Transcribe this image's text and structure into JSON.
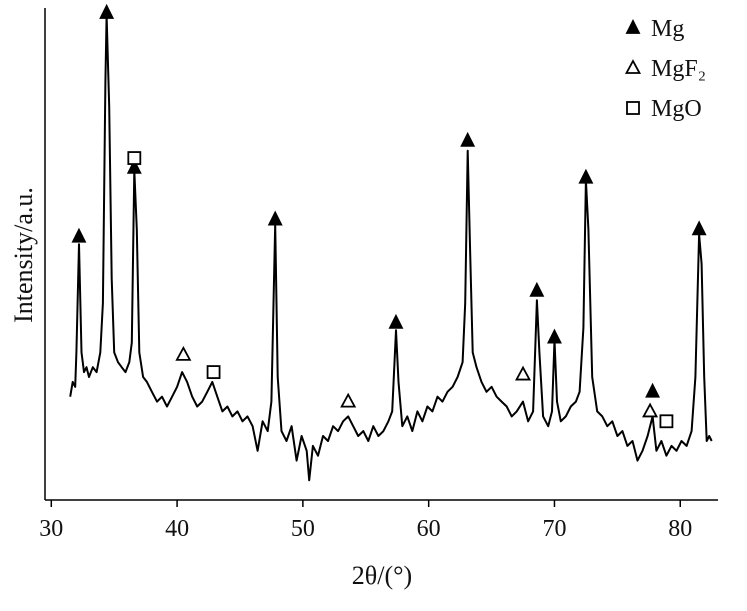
{
  "chart_data": {
    "type": "line",
    "xlabel": "2θ/(°)",
    "ylabel": "Intensity/a.u.",
    "xlim": [
      29.5,
      83
    ],
    "ylim": [
      0,
      100
    ],
    "xticks": [
      30,
      40,
      50,
      60,
      70,
      80
    ],
    "color": "#000000",
    "legend": "upper right",
    "x": [
      31.5,
      31.7,
      31.9,
      32.0,
      32.2,
      32.4,
      32.6,
      32.8,
      33.0,
      33.3,
      33.6,
      33.9,
      34.1,
      34.3,
      34.4,
      34.6,
      34.8,
      35.0,
      35.3,
      35.6,
      35.9,
      36.2,
      36.4,
      36.6,
      36.8,
      37.0,
      37.3,
      37.6,
      38.0,
      38.4,
      38.8,
      39.2,
      39.6,
      40.0,
      40.4,
      40.8,
      41.2,
      41.6,
      42.0,
      42.4,
      42.8,
      43.2,
      43.6,
      44.0,
      44.4,
      44.8,
      45.2,
      45.6,
      46.0,
      46.4,
      46.8,
      47.2,
      47.5,
      47.8,
      48.0,
      48.3,
      48.7,
      49.1,
      49.5,
      49.9,
      50.3,
      50.5,
      50.8,
      51.2,
      51.6,
      52.0,
      52.4,
      52.8,
      53.2,
      53.6,
      54.0,
      54.4,
      54.8,
      55.2,
      55.6,
      56.0,
      56.4,
      56.8,
      57.1,
      57.4,
      57.6,
      57.9,
      58.3,
      58.7,
      59.1,
      59.5,
      59.9,
      60.3,
      60.7,
      61.1,
      61.5,
      61.9,
      62.3,
      62.7,
      62.9,
      63.1,
      63.3,
      63.5,
      63.8,
      64.2,
      64.6,
      65.0,
      65.4,
      65.8,
      66.2,
      66.6,
      67.0,
      67.5,
      67.9,
      68.3,
      68.6,
      68.8,
      69.1,
      69.5,
      69.8,
      70.0,
      70.2,
      70.5,
      70.9,
      71.3,
      71.7,
      72.0,
      72.3,
      72.5,
      72.7,
      73.0,
      73.4,
      73.8,
      74.2,
      74.6,
      75.0,
      75.4,
      75.8,
      76.2,
      76.6,
      77.0,
      77.4,
      77.8,
      78.1,
      78.5,
      78.9,
      79.3,
      79.7,
      80.1,
      80.5,
      80.9,
      81.2,
      81.5,
      81.7,
      81.9,
      82.1,
      82.3,
      82.5
    ],
    "values": [
      21,
      24,
      23,
      30,
      52,
      30,
      26,
      27,
      25,
      27,
      26,
      30,
      40,
      85,
      98.5,
      80,
      45,
      30,
      28,
      27,
      26,
      28,
      32,
      67,
      55,
      30,
      25,
      24,
      22,
      20,
      21,
      19,
      21,
      23,
      26,
      24,
      21,
      19,
      20,
      22,
      24,
      21,
      18,
      19,
      17,
      18,
      16,
      17,
      15,
      10,
      16,
      14,
      20,
      56,
      25,
      14,
      12,
      15,
      8,
      13,
      10,
      4,
      11,
      9,
      13,
      12,
      15,
      14,
      16,
      17,
      15,
      13,
      14,
      12,
      15,
      13,
      14,
      16,
      18,
      34.5,
      24,
      15,
      17,
      14,
      18,
      16,
      19,
      18,
      21,
      20,
      22,
      23,
      25,
      28,
      40,
      71,
      50,
      30,
      27,
      24,
      22,
      23,
      21,
      20,
      19,
      17,
      18,
      20,
      16,
      18,
      40.6,
      30,
      17,
      15,
      18,
      32.5,
      20,
      16,
      17,
      19,
      20,
      22,
      35,
      65,
      55,
      25,
      18,
      17,
      15,
      16,
      13,
      14,
      11,
      12,
      8,
      10,
      13,
      17,
      10,
      12,
      9,
      11,
      10,
      12,
      11,
      14,
      25,
      54,
      48,
      25,
      12,
      13,
      12
    ],
    "markers": [
      {
        "name": "Mg",
        "symbol": "filled-triangle",
        "x": [
          32.2,
          34.4,
          36.6,
          47.8,
          57.4,
          63.1,
          68.6,
          70.0,
          72.5,
          77.8,
          81.5
        ],
        "y": [
          53.5,
          99,
          67.5,
          57,
          36,
          73,
          42.5,
          33,
          65.5,
          22,
          55
        ]
      },
      {
        "name": "MgF₂",
        "symbol": "open-triangle",
        "x": [
          40.5,
          53.6,
          67.5,
          77.6
        ],
        "y": [
          29.5,
          20,
          25.5,
          18
        ]
      },
      {
        "name": "MgO",
        "symbol": "open-square",
        "x": [
          36.6,
          42.9,
          78.9
        ],
        "y": [
          69.5,
          26,
          16
        ]
      }
    ]
  }
}
